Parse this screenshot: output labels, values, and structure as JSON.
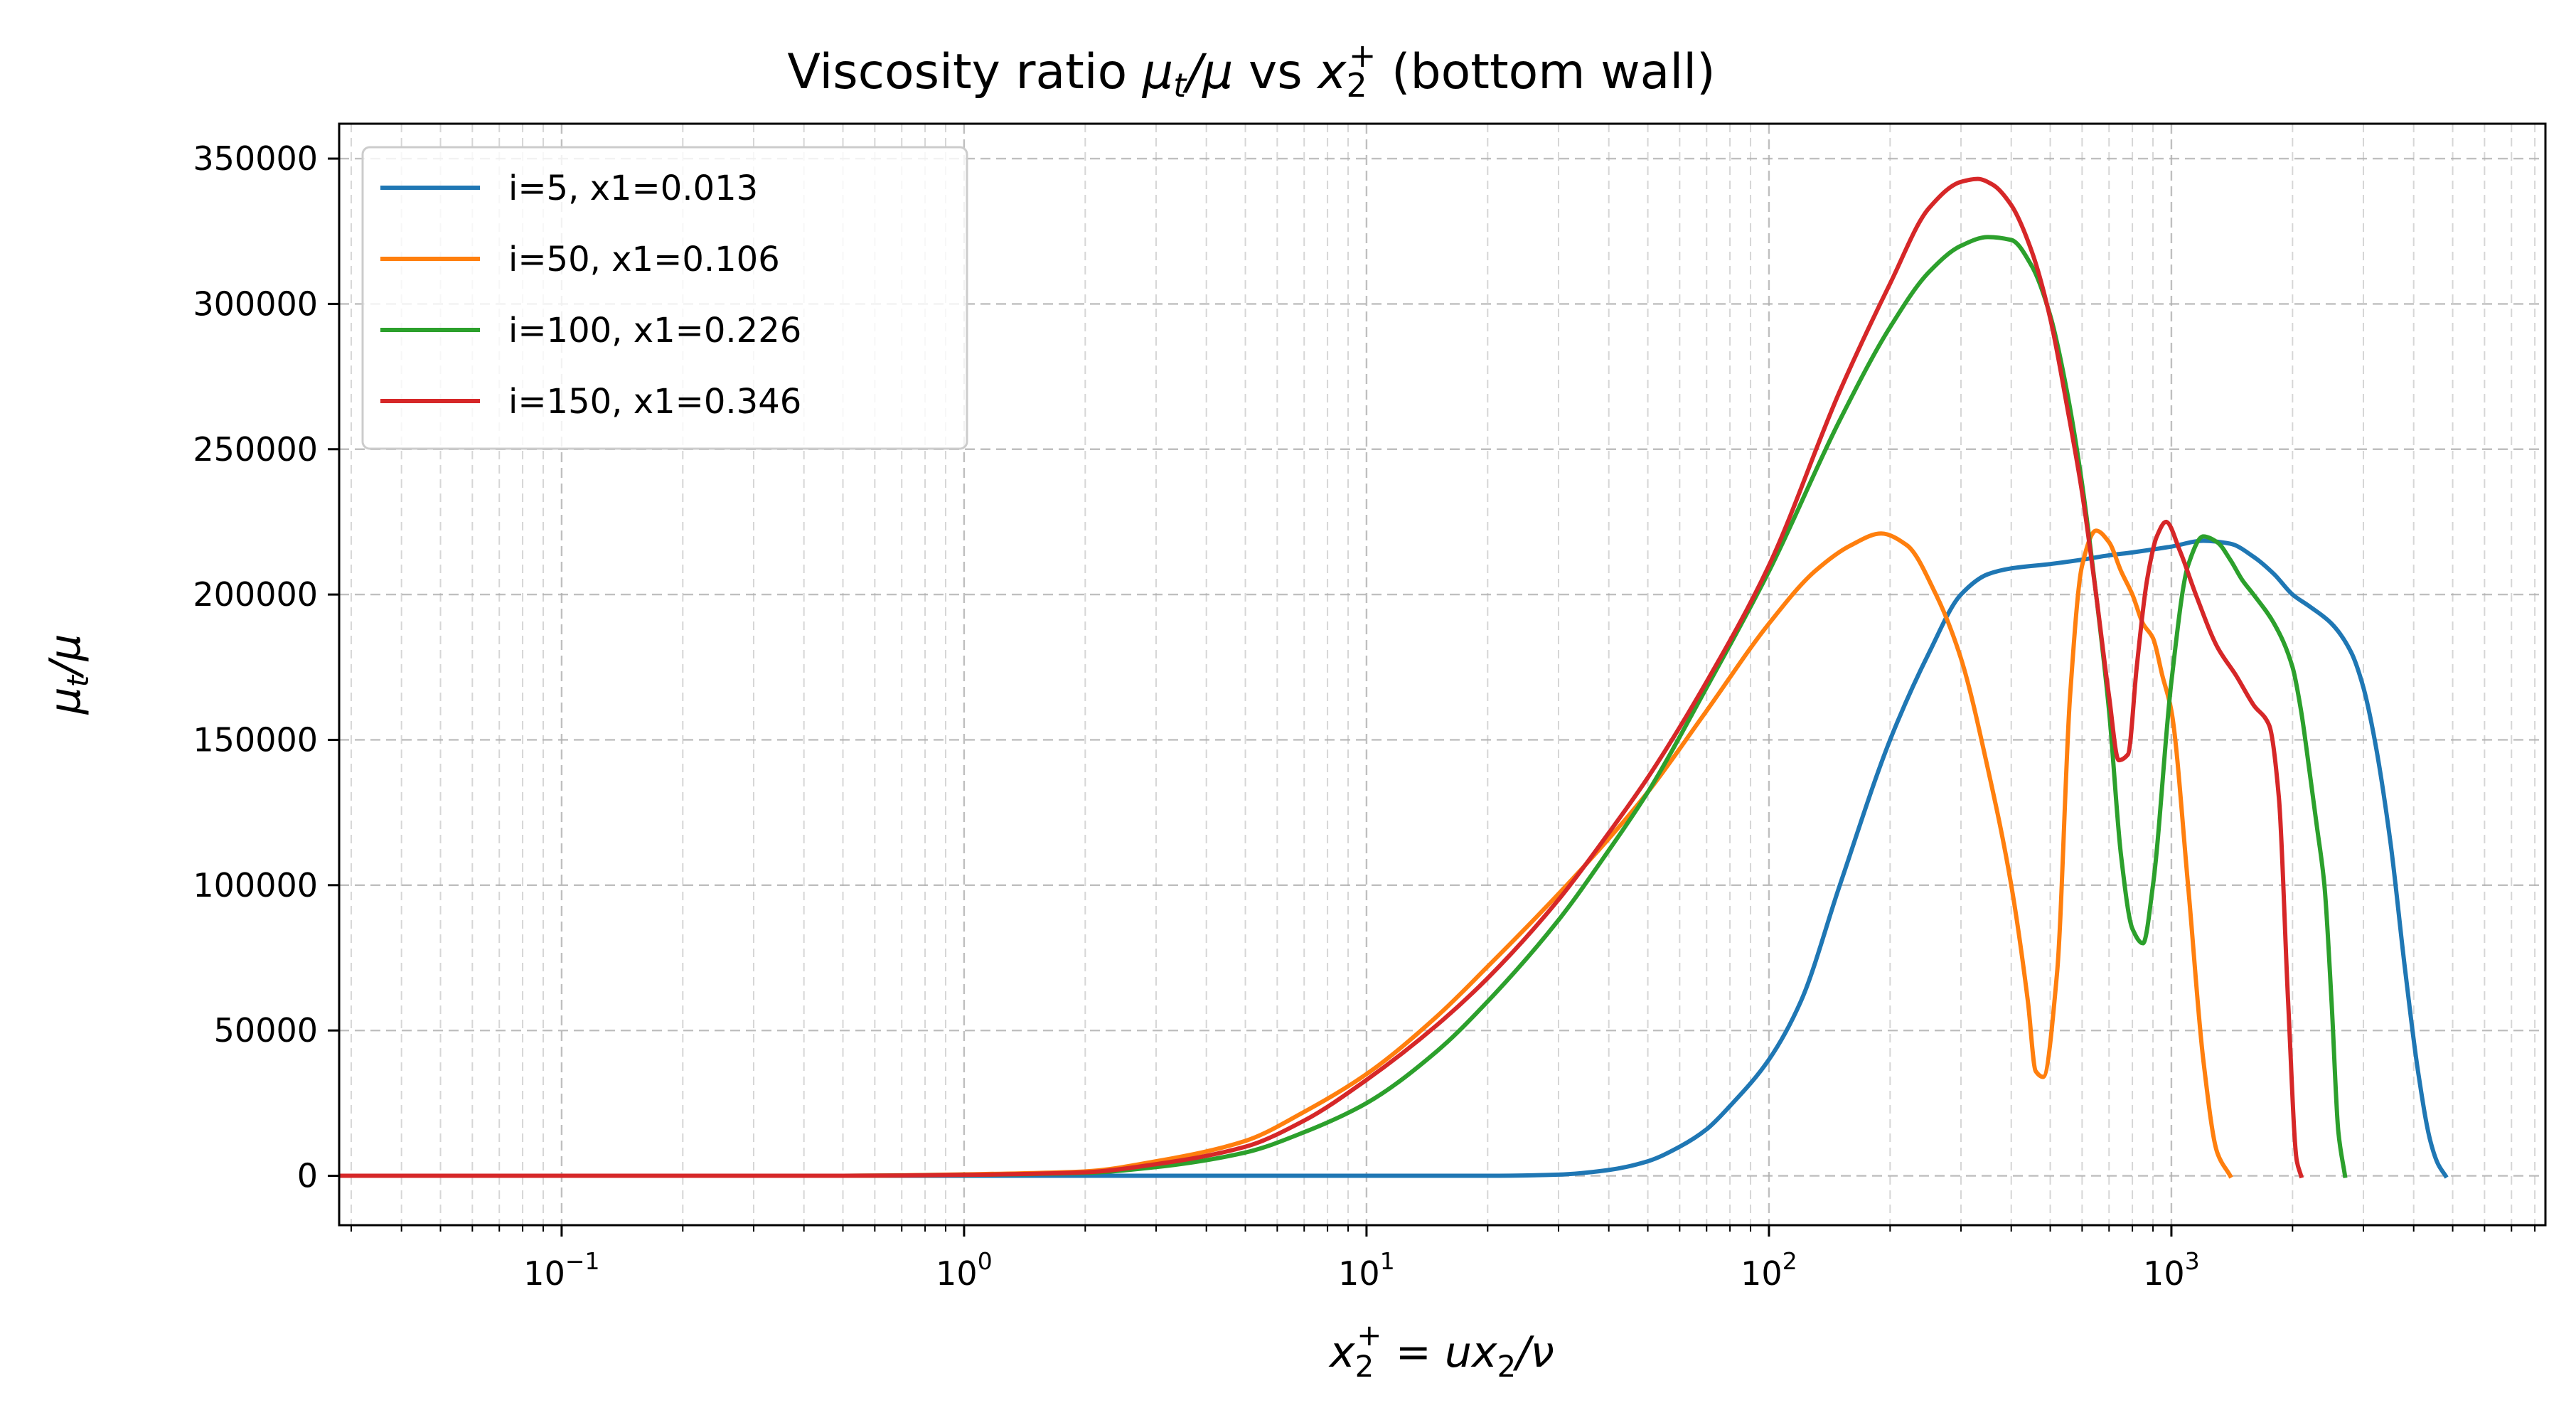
{
  "chart_data": {
    "type": "line",
    "title": "Viscosity ratio μt/μ vs x2+ (bottom wall)",
    "title_parts": {
      "prefix": "Viscosity ratio ",
      "mu": "μ",
      "t_sub": "t",
      "slash_mu": "/μ",
      "mid": " vs ",
      "x": "x",
      "two_sub": "2",
      "plus_sup": "+",
      "suffix": " (bottom wall)"
    },
    "xlabel": "x2+ = ux2/ν",
    "xlabel_parts": {
      "x": "x",
      "two_sub": "2",
      "plus_sup": "+",
      "eq": " = ",
      "u": "u",
      "x2": "x",
      "two_sub_b": "2",
      "slash_nu": "/ν"
    },
    "ylabel": "μt/μ",
    "ylabel_parts": {
      "mu": "μ",
      "t_sub": "t",
      "slash_mu": "/μ"
    },
    "xscale": "log",
    "xlim": [
      0.028,
      8500
    ],
    "ylim": [
      -17000,
      362000
    ],
    "x_ticks": [
      {
        "value": 0.1,
        "base": "10",
        "exp": "−1"
      },
      {
        "value": 1,
        "base": "10",
        "exp": "0"
      },
      {
        "value": 10,
        "base": "10",
        "exp": "1"
      },
      {
        "value": 100,
        "base": "10",
        "exp": "2"
      },
      {
        "value": 1000,
        "base": "10",
        "exp": "3"
      }
    ],
    "y_ticks": [
      {
        "value": 0,
        "label": "0"
      },
      {
        "value": 50000,
        "label": "50000"
      },
      {
        "value": 100000,
        "label": "100000"
      },
      {
        "value": 150000,
        "label": "150000"
      },
      {
        "value": 200000,
        "label": "200000"
      },
      {
        "value": 250000,
        "label": "250000"
      },
      {
        "value": 300000,
        "label": "300000"
      },
      {
        "value": 350000,
        "label": "350000"
      }
    ],
    "grid": true,
    "legend_position": "top-left",
    "series": [
      {
        "name": "i=5, x1=0.013",
        "color": "#1f77b4",
        "x": [
          0.028,
          0.1,
          1,
          5,
          10,
          20,
          30,
          40,
          50,
          60,
          70,
          80,
          100,
          120,
          150,
          200,
          250,
          300,
          350,
          400,
          500,
          600,
          700,
          800,
          1000,
          1200,
          1400,
          1600,
          1800,
          2000,
          2200,
          2500,
          2800,
          3000,
          3200,
          3500,
          3800,
          4100,
          4400,
          4600,
          4800
        ],
        "y": [
          0,
          0,
          0,
          0,
          0,
          0,
          400,
          2000,
          5000,
          10000,
          16000,
          24000,
          40000,
          60000,
          100000,
          150000,
          180000,
          200000,
          207000,
          209000,
          210500,
          212000,
          213500,
          214500,
          216500,
          218500,
          217500,
          213000,
          207000,
          200000,
          196000,
          190000,
          180000,
          168000,
          150000,
          115000,
          72000,
          36000,
          12000,
          4000,
          0
        ]
      },
      {
        "name": "i=50, x1=0.106",
        "color": "#ff7f0e",
        "x": [
          0.028,
          0.1,
          0.5,
          1,
          2,
          3,
          5,
          7,
          10,
          15,
          20,
          30,
          40,
          50,
          70,
          100,
          130,
          160,
          190,
          220,
          260,
          300,
          350,
          400,
          440,
          460,
          480,
          520,
          560,
          600,
          650,
          700,
          750,
          800,
          850,
          900,
          950,
          1000,
          1100,
          1200,
          1300,
          1400
        ],
        "y": [
          0,
          0,
          0,
          500,
          1500,
          5000,
          12000,
          22000,
          35000,
          55000,
          72000,
          97000,
          116000,
          132000,
          160000,
          190000,
          208000,
          217000,
          221000,
          217000,
          200000,
          178000,
          140000,
          100000,
          60000,
          36000,
          34000,
          70000,
          165000,
          210000,
          222000,
          218000,
          208000,
          200000,
          190000,
          185000,
          172000,
          160000,
          100000,
          40000,
          8000,
          0
        ]
      },
      {
        "name": "i=100, x1=0.226",
        "color": "#2ca02c",
        "x": [
          0.028,
          0.1,
          0.5,
          1,
          2,
          3,
          5,
          7,
          10,
          15,
          20,
          30,
          40,
          50,
          70,
          100,
          150,
          200,
          250,
          300,
          350,
          400,
          450,
          500,
          550,
          600,
          650,
          700,
          750,
          800,
          850,
          900,
          1000,
          1100,
          1200,
          1300,
          1400,
          1500,
          1600,
          1800,
          2000,
          2100,
          2200,
          2300,
          2400,
          2500,
          2600,
          2700
        ],
        "y": [
          0,
          0,
          0,
          300,
          1000,
          3000,
          8000,
          15000,
          25000,
          43000,
          60000,
          88000,
          112000,
          132000,
          168000,
          208000,
          260000,
          292000,
          311000,
          320000,
          323000,
          322000,
          313000,
          296000,
          270000,
          238000,
          200000,
          160000,
          110000,
          85000,
          80000,
          100000,
          170000,
          210000,
          220000,
          218000,
          212000,
          205000,
          200000,
          190000,
          175000,
          160000,
          140000,
          120000,
          100000,
          60000,
          15000,
          0
        ]
      },
      {
        "name": "i=150, x1=0.346",
        "color": "#d62728",
        "x": [
          0.028,
          0.1,
          0.5,
          1,
          2,
          3,
          5,
          7,
          10,
          15,
          20,
          30,
          40,
          50,
          70,
          100,
          150,
          200,
          250,
          300,
          330,
          360,
          400,
          450,
          500,
          550,
          600,
          650,
          700,
          740,
          780,
          820,
          870,
          920,
          970,
          1050,
          1150,
          1300,
          1450,
          1600,
          1750,
          1850,
          1950,
          2050,
          2100
        ],
        "y": [
          0,
          0,
          0,
          300,
          1200,
          4000,
          10000,
          19000,
          33000,
          52000,
          68000,
          95000,
          118000,
          137000,
          170000,
          210000,
          270000,
          307000,
          333000,
          342000,
          343000,
          341000,
          334000,
          318000,
          295000,
          265000,
          235000,
          200000,
          165000,
          143000,
          145000,
          175000,
          205000,
          220000,
          225000,
          215000,
          200000,
          182000,
          172000,
          162000,
          155000,
          130000,
          60000,
          5000,
          0
        ]
      }
    ]
  }
}
